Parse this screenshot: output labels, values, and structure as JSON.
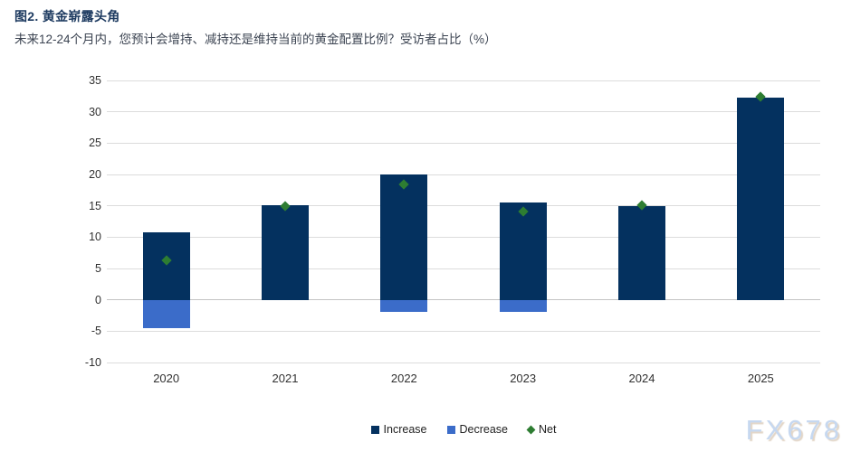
{
  "header": {
    "title": "图2. 黄金崭露头角",
    "subtitle": "未来12-24个月内，您预计会增持、减持还是维持当前的黄金配置比例？受访者占比（%）"
  },
  "watermark": "FX678",
  "colors": {
    "increase_bar": "#04315f",
    "decrease_bar": "#3b6cc9",
    "net_marker": "#2e7d32",
    "title_text": "#1d3a60",
    "gridline": "#dcdcdc",
    "watermark_text": "#c6d8f0"
  },
  "chart_data": {
    "type": "bar",
    "title": "图2. 黄金崭露头角",
    "subtitle": "未来12-24个月内，您预计会增持、减持还是维持当前的黄金配置比例？受访者占比（%）",
    "categories": [
      "2020",
      "2021",
      "2022",
      "2023",
      "2024",
      "2025"
    ],
    "series": [
      {
        "name": "Increase",
        "type": "bar",
        "marker": "square",
        "color": "#04315f",
        "values": [
          10.7,
          15.1,
          20.0,
          15.6,
          15.0,
          32.3
        ]
      },
      {
        "name": "Decrease",
        "type": "bar",
        "marker": "square",
        "color": "#3b6cc9",
        "values": [
          -4.5,
          0,
          -1.9,
          -1.9,
          0,
          0
        ]
      },
      {
        "name": "Net",
        "type": "scatter",
        "marker": "diamond",
        "color": "#2e7d32",
        "values": [
          6.3,
          15.0,
          18.4,
          14.1,
          15.1,
          32.4
        ]
      }
    ],
    "xlabel": "",
    "ylabel": "",
    "ylim": [
      -10,
      35
    ],
    "yticks": [
      35,
      30,
      25,
      20,
      15,
      10,
      5,
      0,
      -5,
      -10
    ],
    "grid": true,
    "legend_position": "bottom"
  }
}
